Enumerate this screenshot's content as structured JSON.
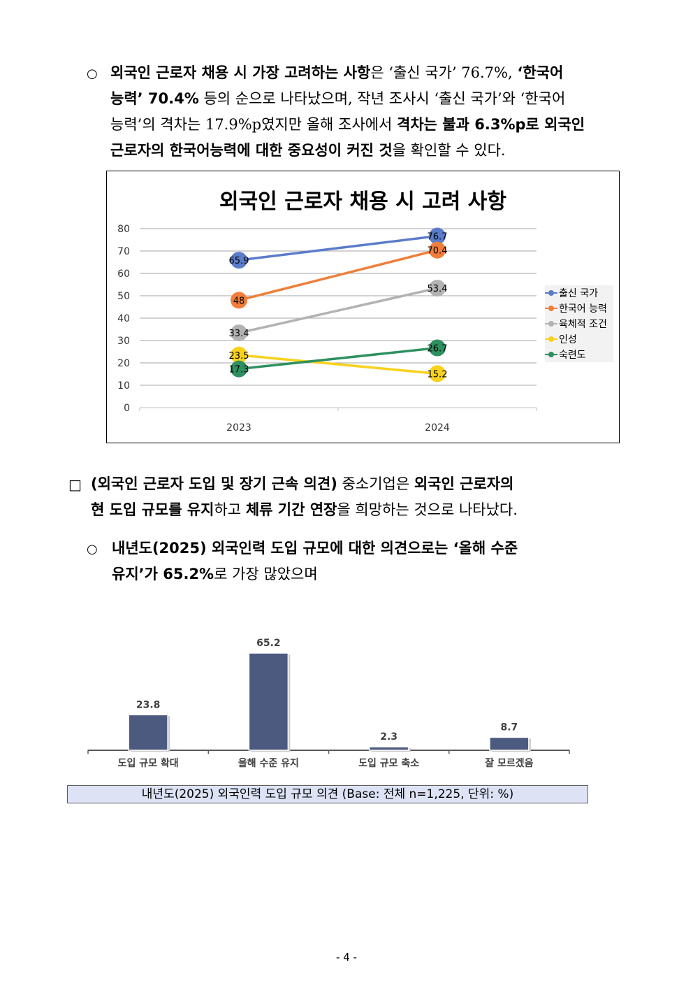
{
  "para1": {
    "bullet": "○",
    "l1_b1": "외국인 근로자 채용 시 가장 고려하는 사항",
    "l1_t1": "은 ‘출신 국가’ 76.7%, ",
    "l1_b2": "‘한국어",
    "l2_b1": "능력’ 70.4%",
    "l2_t1": " 등의 순으로 나타났으며, 작년 조사시 ‘출신 국가’와 ‘한국어",
    "l3_t1": "능력’의 격차는 17.9%p였지만 올해 조사에서 ",
    "l3_b1": "격차는 불과 6.3%p로 외국인",
    "l4_b1": "근로자의 한국어능력에 대한 중요성이 커진 것",
    "l4_t1": "을 확인할 수 있다."
  },
  "chart_data": [
    {
      "type": "line",
      "title": "외국인 근로자 채용 시 고려 사항",
      "x": [
        "2023",
        "2024"
      ],
      "ylim": [
        0,
        80
      ],
      "yticks": [
        "0",
        "10",
        "20",
        "30",
        "40",
        "50",
        "60",
        "70",
        "80"
      ],
      "grid": true,
      "legend_position": "right",
      "series": [
        {
          "name": "출신 국가",
          "values": [
            65.9,
            76.7
          ],
          "labels": [
            "65.9",
            "76.7"
          ],
          "color": "#5b7cc9"
        },
        {
          "name": "한국어 능력",
          "values": [
            48,
            70.4
          ],
          "labels": [
            "48",
            "70.4"
          ],
          "color": "#f07e3a"
        },
        {
          "name": "육체적 조건",
          "values": [
            33.4,
            53.4
          ],
          "labels": [
            "33.4",
            "53.4"
          ],
          "color": "#b3b3b3"
        },
        {
          "name": "인성",
          "values": [
            23.5,
            15.2
          ],
          "labels": [
            "23.5",
            "15.2"
          ],
          "color": "#f8d21c"
        },
        {
          "name": "숙련도",
          "values": [
            17.3,
            26.7
          ],
          "labels": [
            "17.3",
            "26.7"
          ],
          "color": "#2e9060"
        }
      ]
    },
    {
      "type": "bar",
      "categories": [
        "도입 규모 확대",
        "올해 수준 유지",
        "도입 규모 축소",
        "잘 모르겠음"
      ],
      "values": [
        23.8,
        65.2,
        2.3,
        8.7
      ],
      "labels": [
        "23.8",
        "65.2",
        "2.3",
        "8.7"
      ],
      "color": "#4d5a80",
      "caption": "내년도(2025) 외국인력 도입 규모 의견 (Base: 전체 n=1,225, 단위: %)"
    }
  ],
  "para2": {
    "bullet": "□",
    "l1_b1": "(외국인 근로자 도입 및 장기 근속 의견)",
    "l1_t1": " 중소기업은 ",
    "l1_b2": "외국인 근로자의",
    "l2_b1": "현 도입 규모를 유지",
    "l2_t1": "하고 ",
    "l2_b2": "체류 기간 연장",
    "l2_t2": "을 희망하는 것으로 나타났다."
  },
  "para3": {
    "bullet": "○",
    "l1_b1": "내년도(2025) 외국인력 도입 규모에 대한 의견으로는 ‘올해 수준",
    "l2_b1": "유지’가 65.2%",
    "l2_t1": "로 가장 많았으며"
  },
  "page_number": "- 4 -"
}
